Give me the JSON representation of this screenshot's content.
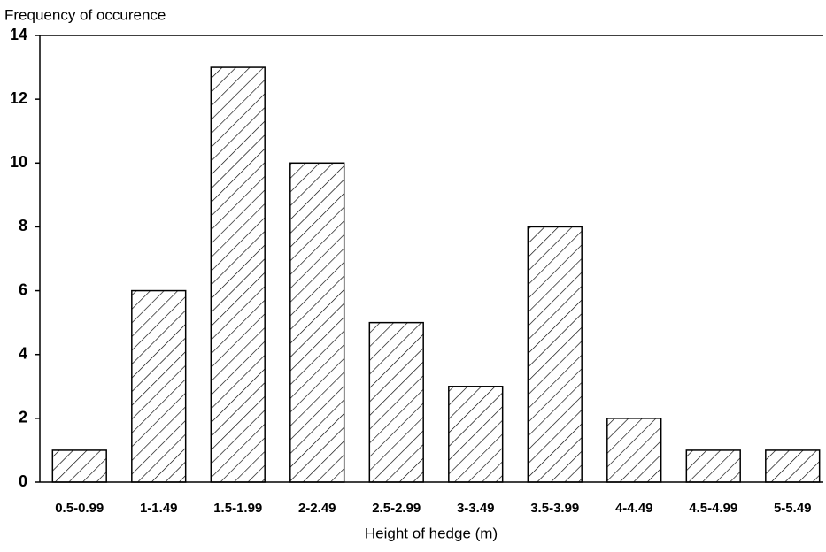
{
  "chart_data": {
    "type": "bar",
    "y_label": "Frequency of occurence",
    "x_label": "Height of hedge (m)",
    "categories": [
      "0.5-0.99",
      "1-1.49",
      "1.5-1.99",
      "2-2.49",
      "2.5-2.99",
      "3-3.49",
      "3.5-3.99",
      "4-4.49",
      "4.5-4.99",
      "5-5.49"
    ],
    "values": [
      1,
      6,
      13,
      10,
      5,
      3,
      8,
      2,
      1,
      1
    ],
    "color": "#000000",
    "ylim": [
      0,
      14
    ],
    "yticks": [
      0,
      2,
      4,
      6,
      8,
      10,
      12,
      14
    ]
  }
}
